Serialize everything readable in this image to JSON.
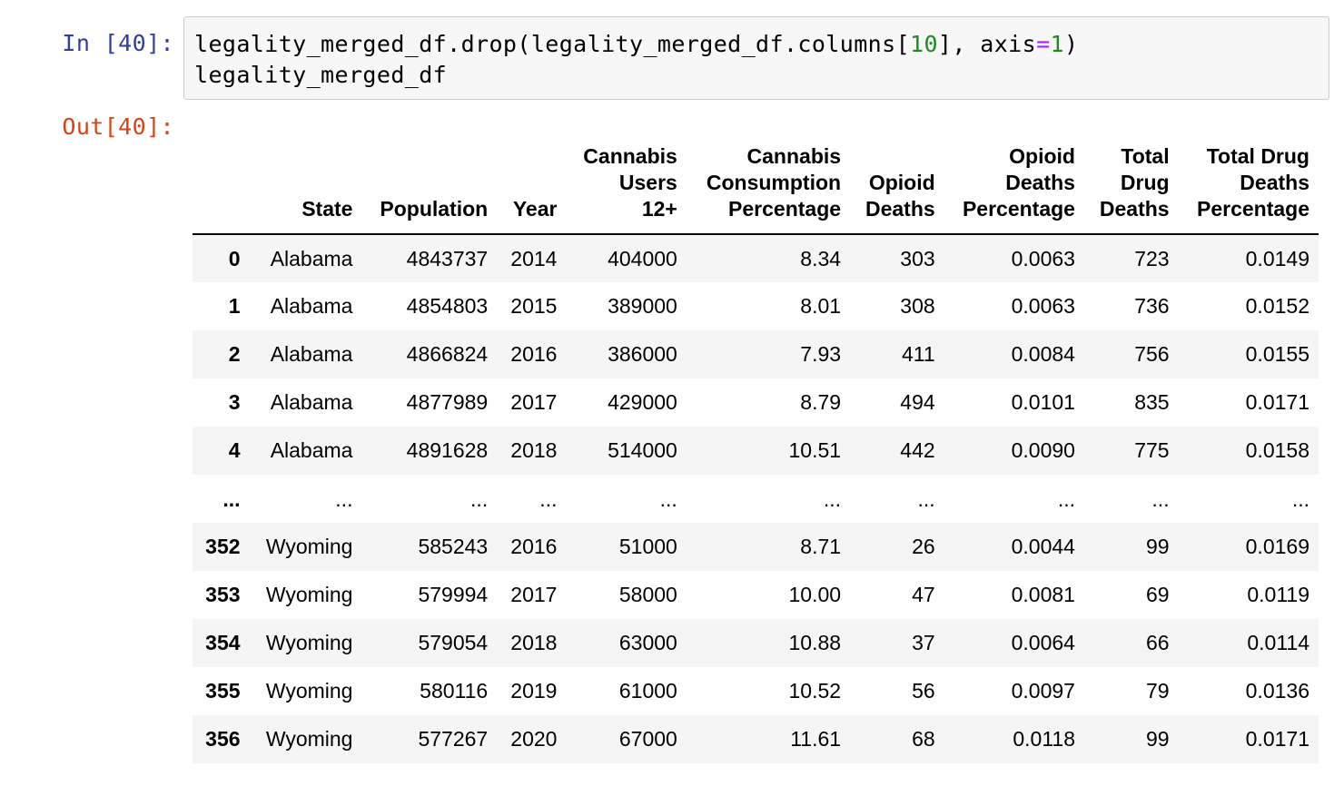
{
  "notebook": {
    "input_prompt": "In [40]:",
    "output_prompt": "Out[40]:",
    "code": {
      "line1_a": "legality_merged_df.drop(legality_merged_df.columns[",
      "line1_num": "10",
      "line1_b": "], axis",
      "line1_op": "=",
      "line1_num2": "1",
      "line1_c": ")",
      "line2": "legality_merged_df"
    }
  },
  "table": {
    "columns": [
      "",
      "State",
      "Population",
      "Year",
      "Cannabis Users 12+",
      "Cannabis Consumption Percentage",
      "Opioid Deaths",
      "Opioid Deaths Percentage",
      "Total Drug Deaths",
      "Total Drug Deaths Percentage"
    ],
    "column_lines": [
      [
        ""
      ],
      [
        "State"
      ],
      [
        "Population"
      ],
      [
        "Year"
      ],
      [
        "Cannabis",
        "Users",
        "12+"
      ],
      [
        "Cannabis",
        "Consumption",
        "Percentage"
      ],
      [
        "Opioid",
        "Deaths"
      ],
      [
        "Opioid",
        "Deaths",
        "Percentage"
      ],
      [
        "Total",
        "Drug",
        "Deaths"
      ],
      [
        "Total Drug",
        "Deaths",
        "Percentage"
      ]
    ],
    "rows": [
      [
        "0",
        "Alabama",
        "4843737",
        "2014",
        "404000",
        "8.34",
        "303",
        "0.0063",
        "723",
        "0.0149"
      ],
      [
        "1",
        "Alabama",
        "4854803",
        "2015",
        "389000",
        "8.01",
        "308",
        "0.0063",
        "736",
        "0.0152"
      ],
      [
        "2",
        "Alabama",
        "4866824",
        "2016",
        "386000",
        "7.93",
        "411",
        "0.0084",
        "756",
        "0.0155"
      ],
      [
        "3",
        "Alabama",
        "4877989",
        "2017",
        "429000",
        "8.79",
        "494",
        "0.0101",
        "835",
        "0.0171"
      ],
      [
        "4",
        "Alabama",
        "4891628",
        "2018",
        "514000",
        "10.51",
        "442",
        "0.0090",
        "775",
        "0.0158"
      ],
      [
        "...",
        "...",
        "...",
        "...",
        "...",
        "...",
        "...",
        "...",
        "...",
        "..."
      ],
      [
        "352",
        "Wyoming",
        "585243",
        "2016",
        "51000",
        "8.71",
        "26",
        "0.0044",
        "99",
        "0.0169"
      ],
      [
        "353",
        "Wyoming",
        "579994",
        "2017",
        "58000",
        "10.00",
        "47",
        "0.0081",
        "69",
        "0.0119"
      ],
      [
        "354",
        "Wyoming",
        "579054",
        "2018",
        "63000",
        "10.88",
        "37",
        "0.0064",
        "66",
        "0.0114"
      ],
      [
        "355",
        "Wyoming",
        "580116",
        "2019",
        "61000",
        "10.52",
        "56",
        "0.0097",
        "79",
        "0.0136"
      ],
      [
        "356",
        "Wyoming",
        "577267",
        "2020",
        "67000",
        "11.61",
        "68",
        "0.0118",
        "99",
        "0.0171"
      ]
    ]
  },
  "colors": {
    "input_prompt": "#303f9f",
    "output_prompt": "#d84315",
    "number_literal": "#1e8a1e",
    "operator": "#aa22ff",
    "code_background": "#f7f7f7",
    "striped_row": "#f5f5f5"
  }
}
